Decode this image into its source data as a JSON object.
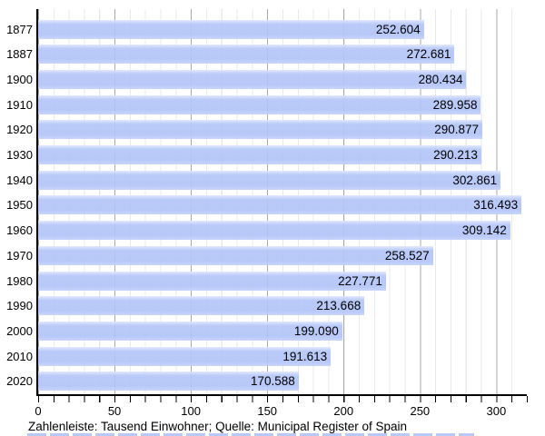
{
  "chart_data": {
    "type": "bar",
    "orientation": "horizontal",
    "title": "",
    "xlabel": "",
    "ylabel": "",
    "categories": [
      "1877",
      "1887",
      "1900",
      "1910",
      "1920",
      "1930",
      "1940",
      "1950",
      "1960",
      "1970",
      "1980",
      "1990",
      "2000",
      "2010",
      "2020"
    ],
    "values": [
      252.604,
      272.681,
      280.434,
      289.958,
      290.877,
      290.213,
      302.861,
      316.493,
      309.142,
      258.527,
      227.771,
      213.668,
      199.09,
      191.613,
      170.588
    ],
    "value_labels": [
      "252.604",
      "272.681",
      "280.434",
      "289.958",
      "290.877",
      "290.213",
      "302.861",
      "316.493",
      "309.142",
      "258.527",
      "227.771",
      "213.668",
      "199.090",
      "191.613",
      "170.588"
    ],
    "xlim": [
      0,
      320
    ],
    "x_ticks": [
      0,
      50,
      100,
      150,
      200,
      250,
      300
    ],
    "x_tick_labels": [
      "0",
      "50",
      "100",
      "150",
      "200",
      "250",
      "300"
    ],
    "x_minor_tick_step": 10,
    "grid": "vertical: minor every 10, major every 50",
    "legend": "none",
    "caption": "Zahlenleiste: Tausend Einwohner; Quelle: Municipal Register of Spain",
    "colors": {
      "bar": "#b4c5f7",
      "bar_highlight": "#dfe7fc",
      "grid_minor": "#e9e9e9",
      "grid_major": "#a8a8a8",
      "axis": "#000000",
      "text": "#000000",
      "background": "#ffffff",
      "divider_strip": "#b8c9f7"
    }
  }
}
